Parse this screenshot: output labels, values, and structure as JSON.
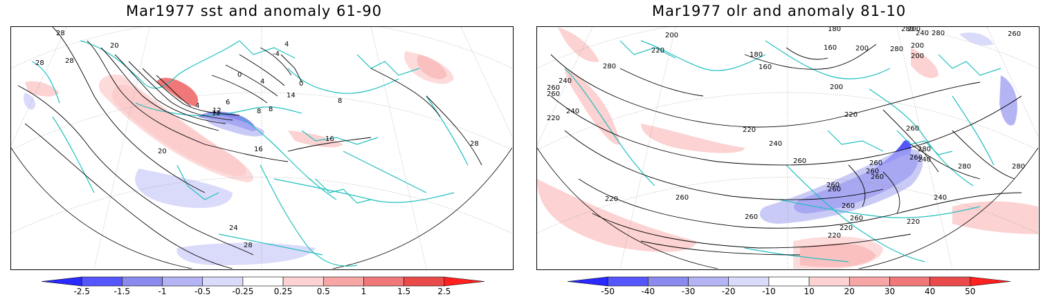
{
  "panels": [
    {
      "title": "Mar1977 sst and anomaly 61-90",
      "contour_labels": [
        "28",
        "28",
        "28",
        "20",
        "0",
        "4",
        "8",
        "12",
        "6",
        "8",
        "12",
        "0",
        "4",
        "-4",
        "4",
        "14",
        "16",
        "20",
        "16",
        "24",
        "28",
        "28",
        "8"
      ],
      "colorbar": {
        "ticks": [
          "-2.5",
          "-1.5",
          "-1",
          "-0.5",
          "-0.25",
          "0.25",
          "0.5",
          "1",
          "1.5",
          "2.5"
        ],
        "colors": [
          "#2a2aff",
          "#5656ff",
          "#8a8aef",
          "#b4b4f4",
          "#dadafa",
          "#ffffff",
          "#fcd2d2",
          "#f7a6a6",
          "#f07878",
          "#ea4a4a",
          "#ff2020"
        ]
      }
    },
    {
      "title": "Mar1977 olr and anomaly 81-10",
      "contour_labels": [
        "200",
        "180",
        "220",
        "180",
        "160",
        "160",
        "200",
        "200",
        "280",
        "240",
        "280",
        "280",
        "260",
        "280",
        "200",
        "200",
        "260",
        "240",
        "220",
        "200",
        "220",
        "220",
        "240",
        "260",
        "240",
        "260",
        "260",
        "260",
        "280",
        "260",
        "260",
        "260",
        "280",
        "260",
        "260",
        "260",
        "240",
        "260",
        "220",
        "260",
        "220",
        "260",
        "240",
        "220",
        "280",
        "220"
      ],
      "colorbar": {
        "ticks": [
          "-50",
          "-40",
          "-30",
          "-20",
          "-10",
          "10",
          "20",
          "30",
          "40",
          "50"
        ],
        "colors": [
          "#2a2aff",
          "#5656ff",
          "#8a8aef",
          "#b4b4f4",
          "#dadafa",
          "#ffffff",
          "#fcd2d2",
          "#f7a6a6",
          "#f07878",
          "#ea4a4a",
          "#ff2020"
        ]
      }
    }
  ]
}
